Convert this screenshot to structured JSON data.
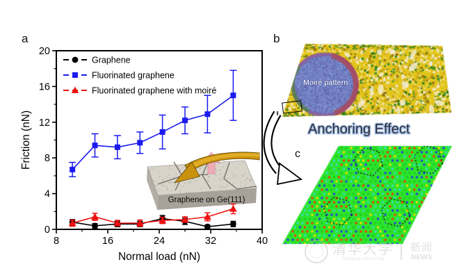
{
  "figure": {
    "panel_a_label": "a",
    "panel_b_label": "b",
    "panel_c_label": "c"
  },
  "chart_data": {
    "type": "line",
    "title": "",
    "xlabel": "Normal load (nN)",
    "ylabel": "Friction (nN)",
    "xlim": [
      8,
      40
    ],
    "ylim": [
      0,
      20
    ],
    "xticks": [
      8,
      16,
      24,
      32,
      40
    ],
    "xminorticks": [
      12,
      20,
      28,
      36
    ],
    "yticks": [
      0,
      4,
      8,
      12,
      16,
      20
    ],
    "yminorticks": [
      2,
      6,
      10,
      14,
      18
    ],
    "grid": false,
    "legend_position": "top-left",
    "x": [
      10.5,
      14,
      17.5,
      21,
      24.5,
      28,
      31.5,
      35.5
    ],
    "series": [
      {
        "name": "Graphene",
        "marker": "circle",
        "color": "#000000",
        "values": [
          0.8,
          0.4,
          0.6,
          0.6,
          1.2,
          0.9,
          0.3,
          0.6
        ],
        "errors": [
          0.3,
          0.25,
          0.3,
          0.3,
          0.35,
          0.35,
          0.2,
          0.3
        ]
      },
      {
        "name": "Fluorinated graphene",
        "marker": "square",
        "color": "#1b1bf0",
        "values": [
          6.7,
          9.4,
          9.2,
          9.7,
          10.9,
          12.2,
          12.9,
          15.0
        ],
        "errors": [
          0.8,
          1.3,
          1.3,
          1.2,
          1.9,
          1.5,
          2.1,
          2.8
        ]
      },
      {
        "name": "Fluorinated graphene with moiré",
        "marker": "triangle",
        "color": "#ee1010",
        "values": [
          0.7,
          1.4,
          0.7,
          0.7,
          1.0,
          1.1,
          1.4,
          2.3
        ],
        "errors": [
          0.35,
          0.4,
          0.3,
          0.35,
          0.35,
          0.3,
          0.45,
          0.55
        ]
      }
    ],
    "inset_caption": "Graphene on Ge(111)"
  },
  "panel_b": {
    "caption": "Moiré pattern",
    "heading": "Anchoring Effect",
    "colors": {
      "surface_base": "#e3c41c",
      "surface_light": "#f2e6b8",
      "surface_gold": "#caa315",
      "surface_dark": "#97750b",
      "surface_cream": "#f4ecd2",
      "surface_green": "#3f8f22",
      "surface_green_dark": "#2e7a17",
      "domain_blue": "#7282c4",
      "domain_dot_dark": "#5a6ab2",
      "domain_dot_light": "#8f9ed8",
      "domain_rim_red": "#a84a5e",
      "domain_rim_purple": "#8a5f9e"
    }
  },
  "panel_c": {
    "colors": {
      "background": "#2ce42c",
      "dot_red": "#ff3000",
      "dot_blue": "#2637e8",
      "dot_yellow": "#ffd900",
      "dot_cyan": "#38dcc8",
      "dot_green": "#22c822",
      "hexagon_outline": "#101010"
    }
  },
  "watermark": {
    "university_cn": "清华大学",
    "university_en": "Tsinghua University",
    "news_cn": "新闻",
    "news_en": "NEWS",
    "separator": "|"
  }
}
